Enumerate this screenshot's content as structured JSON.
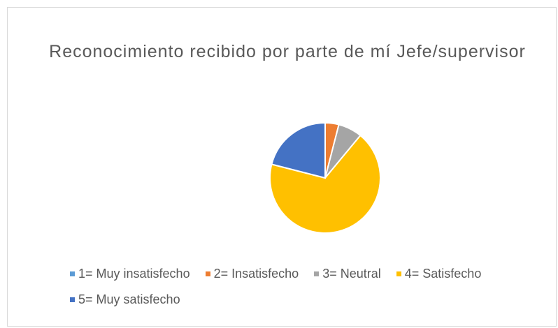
{
  "chart_data": {
    "type": "pie",
    "title": "Reconocimiento recibido por parte de mí Jefe/supervisor",
    "categories": [
      "1= Muy insatisfecho",
      "2= Insatisfecho",
      "3= Neutral",
      "4= Satisfecho",
      "5= Muy satisfecho"
    ],
    "values": [
      0,
      4,
      7,
      68,
      21
    ],
    "colors": [
      "#5b9bd5",
      "#ed7d31",
      "#a5a5a5",
      "#ffc000",
      "#4472c4"
    ],
    "legend": "bottom"
  }
}
